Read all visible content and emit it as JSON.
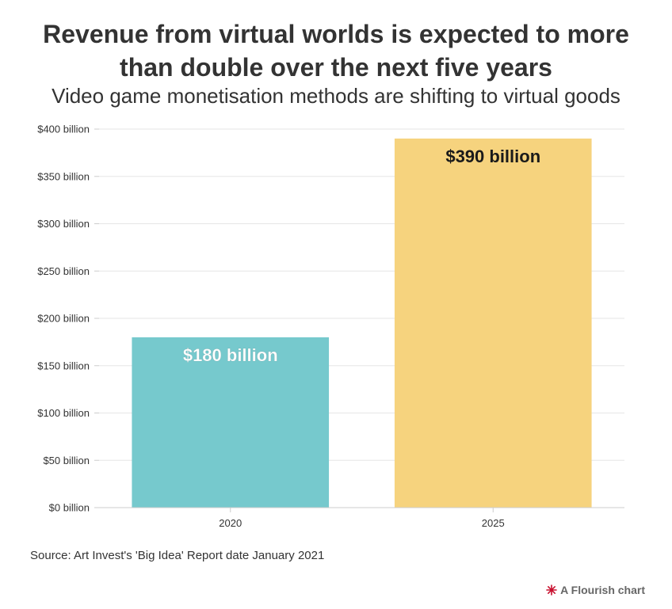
{
  "header": {
    "title_line1": "Revenue from virtual worlds is expected to more",
    "title_line2": "than double over the next five years",
    "subtitle": "Video game monetisation methods are shifting to virtual goods"
  },
  "chart_data": {
    "type": "bar",
    "title": "Revenue from virtual worlds is expected to more than double over the next five years",
    "subtitle": "Video game monetisation methods are shifting to virtual goods",
    "categories": [
      "2020",
      "2025"
    ],
    "values": [
      180,
      390
    ],
    "data_labels": [
      "$180 billion",
      "$390 billion"
    ],
    "colors": [
      "#76c9cd",
      "#f6d37e"
    ],
    "label_colors": [
      "#ffffff",
      "#1a1a1a"
    ],
    "ylim": [
      0,
      400
    ],
    "yticks": [
      0,
      50,
      100,
      150,
      200,
      250,
      300,
      350,
      400
    ],
    "ytick_labels": [
      "$0 billion",
      "$50 billion",
      "$100 billion",
      "$150 billion",
      "$200 billion",
      "$250 billion",
      "$300 billion",
      "$350 billion",
      "$400 billion"
    ],
    "xlabel": "",
    "ylabel": "",
    "grid": true
  },
  "footer": {
    "source": "Source: Art Invest's 'Big Idea' Report date January 2021",
    "credit": "A Flourish chart",
    "credit_icon": "flourish-logo-icon"
  }
}
